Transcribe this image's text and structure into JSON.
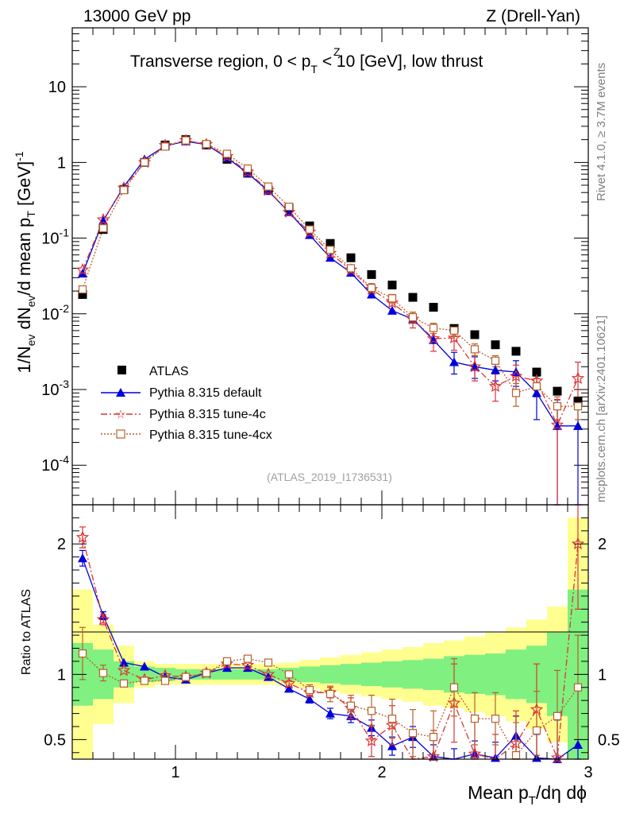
{
  "header": {
    "left": "13000 GeV pp",
    "right": "Z (Drell-Yan)",
    "title_main": "Transverse region, 0 < p",
    "title_sup": "Z",
    "title_sub": "T",
    "title_rest": " < 10 [GeV], low thrust"
  },
  "side": {
    "rivet": "Rivet 4.1.0, ≥ 3.7M events",
    "mcplots": "mcplots.cern.ch [arXiv:2401.10621]"
  },
  "watermark": "(ATLAS_2019_I1736531)",
  "axes": {
    "ylabel_main": "1/N_ev dN_ev/d mean p_T [GeV]^-1",
    "ylabel_ratio": "Ratio to ATLAS",
    "xlabel": "Mean p_T/dη dϕ"
  },
  "colors": {
    "atlas": "#000000",
    "default": "#0000dd",
    "tune4c": "#dd3333",
    "tune4cx": "#b8602a",
    "band_inner": "#80f080",
    "band_outer": "#ffff90"
  },
  "legend": {
    "atlas": "ATLAS",
    "default": "Pythia 8.315 default",
    "tune4c": "Pythia 8.315 tune-4c",
    "tune4cx": "Pythia 8.315 tune-4cx"
  },
  "chart_data": [
    {
      "type": "scatter",
      "panel": "main",
      "yscale": "log",
      "xlim": [
        0.5,
        3.0
      ],
      "ylim": [
        3e-05,
        60
      ],
      "x": [
        0.55,
        0.65,
        0.75,
        0.85,
        0.95,
        1.05,
        1.15,
        1.25,
        1.35,
        1.45,
        1.55,
        1.65,
        1.75,
        1.85,
        1.95,
        2.05,
        2.15,
        2.25,
        2.35,
        2.45,
        2.55,
        2.65,
        2.75,
        2.85,
        2.95
      ],
      "xticks": [
        1,
        2,
        3
      ],
      "yticks": [
        {
          "v": 0.0001,
          "m": "10",
          "e": "-4"
        },
        {
          "v": 0.001,
          "m": "10",
          "e": "-3"
        },
        {
          "v": 0.01,
          "m": "10",
          "e": "-2"
        },
        {
          "v": 0.1,
          "m": "10",
          "e": "-1"
        },
        {
          "v": 1,
          "m": "1",
          "e": ""
        },
        {
          "v": 10,
          "m": "10",
          "e": ""
        }
      ],
      "series": [
        {
          "name": "ATLAS",
          "key": "atlas",
          "values": [
            0.018,
            0.13,
            0.44,
            1.0,
            1.7,
            2.0,
            1.7,
            1.1,
            0.72,
            0.43,
            0.25,
            0.145,
            0.085,
            0.055,
            0.033,
            0.024,
            0.0165,
            0.0122,
            0.0064,
            0.0053,
            0.0039,
            0.0032,
            0.0017,
            0.00095,
            0.0007
          ]
        },
        {
          "name": "Pythia 8.315 default",
          "key": "default",
          "values": [
            0.034,
            0.17,
            0.48,
            1.1,
            1.65,
            1.9,
            1.72,
            1.15,
            0.72,
            0.42,
            0.22,
            0.11,
            0.055,
            0.035,
            0.018,
            0.011,
            0.0085,
            0.0045,
            0.0023,
            0.002,
            0.0018,
            0.0017,
            0.0009,
            0.00033,
            0.00033
          ],
          "err_lo": [
            0,
            0,
            0,
            0,
            0,
            0,
            0,
            0,
            0,
            0,
            0,
            0,
            0,
            0,
            0,
            0,
            0,
            0,
            0.0007,
            0.0006,
            0.0005,
            0.0006,
            0.0005,
            0.00031,
            0.00031
          ],
          "err_hi": [
            0,
            0,
            0,
            0,
            0,
            0,
            0,
            0,
            0,
            0,
            0,
            0,
            0,
            0,
            0,
            0,
            0,
            0,
            0.0008,
            0.0007,
            0.0006,
            0.0007,
            0.0006,
            0.0004,
            0.0004
          ]
        },
        {
          "name": "Pythia 8.315 tune-4c",
          "key": "tune4c",
          "values": [
            0.038,
            0.175,
            0.46,
            1.0,
            1.68,
            1.95,
            1.73,
            1.2,
            0.75,
            0.43,
            0.22,
            0.12,
            0.063,
            0.038,
            0.021,
            0.014,
            0.0085,
            0.0047,
            0.0048,
            0.002,
            0.0011,
            0.0015,
            0.0013,
            0.00034,
            0.0014
          ],
          "err_lo": [
            0,
            0,
            0,
            0,
            0,
            0,
            0,
            0,
            0,
            0,
            0,
            0,
            0,
            0,
            0.004,
            0.003,
            0.002,
            0.0015,
            0.0015,
            0.0007,
            0.0004,
            0.0005,
            0.0005,
            0.00031,
            0.0008
          ],
          "err_hi": [
            0,
            0,
            0,
            0,
            0,
            0,
            0,
            0,
            0,
            0,
            0,
            0,
            0,
            0,
            0.004,
            0.003,
            0.002,
            0.0015,
            0.0015,
            0.0008,
            0.0005,
            0.0006,
            0.0006,
            0.0004,
            0.0009
          ]
        },
        {
          "name": "Pythia 8.315 tune-4cx",
          "key": "tune4cx",
          "values": [
            0.021,
            0.135,
            0.43,
            1.0,
            1.62,
            1.95,
            1.75,
            1.3,
            0.83,
            0.48,
            0.26,
            0.13,
            0.07,
            0.04,
            0.022,
            0.016,
            0.009,
            0.0065,
            0.006,
            0.0034,
            0.0024,
            0.0009,
            0.0011,
            0.0006,
            0.0006
          ],
          "err_lo": [
            0,
            0,
            0,
            0,
            0,
            0,
            0,
            0,
            0,
            0,
            0,
            0,
            0,
            0,
            0.003,
            0.002,
            0.0015,
            0.001,
            0.001,
            0.0006,
            0.0004,
            0.0003,
            0.0003,
            0.0002,
            0.0002
          ],
          "err_hi": [
            0,
            0,
            0,
            0,
            0,
            0,
            0,
            0,
            0,
            0,
            0,
            0,
            0,
            0,
            0.003,
            0.002,
            0.0015,
            0.001,
            0.001,
            0.0006,
            0.0004,
            0.0003,
            0.0003,
            0.0002,
            0.0002
          ]
        }
      ]
    },
    {
      "type": "line",
      "panel": "ratio",
      "xlim": [
        0.5,
        3.0
      ],
      "ylim": [
        0.35,
        2.3
      ],
      "x": [
        0.55,
        0.65,
        0.75,
        0.85,
        0.95,
        1.05,
        1.15,
        1.25,
        1.35,
        1.45,
        1.55,
        1.65,
        1.75,
        1.85,
        1.95,
        2.05,
        2.15,
        2.25,
        2.35,
        2.45,
        2.55,
        2.65,
        2.75,
        2.85,
        2.95
      ],
      "xticks": [
        1,
        2,
        3
      ],
      "xtick_labels": [
        "1",
        "2",
        "3"
      ],
      "yticks": [
        0.5,
        1,
        2
      ],
      "ytick_labels": [
        "0.5",
        "1",
        "2"
      ],
      "band_edges": [
        0.5,
        0.6,
        0.7,
        0.8,
        0.9,
        1.0,
        1.1,
        1.2,
        1.3,
        1.4,
        1.5,
        1.6,
        1.7,
        1.8,
        1.9,
        2.0,
        2.1,
        2.2,
        2.3,
        2.4,
        2.5,
        2.6,
        2.7,
        2.8,
        2.9,
        3.0
      ],
      "band_inner": {
        "lo": [
          0.76,
          0.81,
          0.9,
          0.94,
          0.95,
          0.96,
          0.96,
          0.96,
          0.96,
          0.96,
          0.95,
          0.94,
          0.93,
          0.92,
          0.91,
          0.9,
          0.89,
          0.88,
          0.86,
          0.85,
          0.84,
          0.81,
          0.78,
          0.68,
          0.35
        ],
        "hi": [
          1.24,
          1.19,
          1.1,
          1.06,
          1.05,
          1.04,
          1.04,
          1.04,
          1.04,
          1.04,
          1.05,
          1.06,
          1.07,
          1.08,
          1.09,
          1.1,
          1.11,
          1.12,
          1.14,
          1.15,
          1.16,
          1.19,
          1.22,
          1.32,
          1.65
        ]
      },
      "band_outer": {
        "lo": [
          0.35,
          0.62,
          0.78,
          0.9,
          0.92,
          0.92,
          0.92,
          0.92,
          0.92,
          0.92,
          0.91,
          0.89,
          0.87,
          0.85,
          0.83,
          0.81,
          0.79,
          0.76,
          0.74,
          0.71,
          0.68,
          0.64,
          0.58,
          0.48,
          0.35
        ],
        "hi": [
          1.65,
          1.38,
          1.22,
          1.1,
          1.08,
          1.08,
          1.08,
          1.08,
          1.08,
          1.08,
          1.09,
          1.11,
          1.13,
          1.15,
          1.17,
          1.19,
          1.21,
          1.24,
          1.26,
          1.29,
          1.32,
          1.36,
          1.42,
          1.52,
          2.2
        ]
      },
      "series": [
        {
          "name": "Pythia 8.315 default",
          "key": "default",
          "values": [
            1.89,
            1.45,
            1.09,
            1.06,
            0.98,
            0.96,
            1.01,
            1.05,
            1.05,
            0.98,
            0.89,
            0.81,
            0.7,
            0.68,
            0.59,
            0.45,
            0.52,
            0.37,
            0.33,
            0.39,
            0.36,
            0.53,
            0.36,
            0.35,
            0.46
          ],
          "err": [
            0.06,
            0.03,
            0,
            0,
            0,
            0,
            0,
            0,
            0,
            0,
            0.02,
            0.03,
            0.04,
            0.05,
            0.06,
            0.07,
            0.08,
            0.09,
            0.1,
            0.1,
            0.12,
            0.15,
            0.18,
            0.3,
            0.45
          ]
        },
        {
          "name": "Pythia 8.315 tune-4c",
          "key": "tune4c",
          "values": [
            2.05,
            1.42,
            1.03,
            0.96,
            0.99,
            0.98,
            1.01,
            1.08,
            1.07,
            1.0,
            0.93,
            0.86,
            0.86,
            0.74,
            0.49,
            0.61,
            0.34,
            0.37,
            0.78,
            0.39,
            0.29,
            0.47,
            0.73,
            0.36,
            2.0
          ],
          "err": [
            0.08,
            0.04,
            0,
            0,
            0,
            0,
            0,
            0,
            0,
            0,
            0.02,
            0.03,
            0.04,
            0.08,
            0.12,
            0.15,
            0.18,
            0.2,
            0.3,
            0.25,
            0.25,
            0.25,
            0.35,
            0.3,
            0.5
          ]
        },
        {
          "name": "Pythia 8.315 tune-4cx",
          "key": "tune4cx",
          "values": [
            1.16,
            1.01,
            0.93,
            0.95,
            0.95,
            0.98,
            1.01,
            1.1,
            1.12,
            1.09,
            1.0,
            0.88,
            0.85,
            0.76,
            0.72,
            0.66,
            0.55,
            0.52,
            0.9,
            0.66,
            0.66,
            0.38,
            0.57,
            0.68,
            0.9
          ],
          "err": [
            0.2,
            0.06,
            0,
            0,
            0,
            0,
            0,
            0,
            0,
            0,
            0.02,
            0.04,
            0.06,
            0.08,
            0.12,
            0.15,
            0.18,
            0.2,
            0.22,
            0.2,
            0.2,
            0.25,
            0.3,
            0.35,
            0.4
          ]
        }
      ]
    }
  ]
}
